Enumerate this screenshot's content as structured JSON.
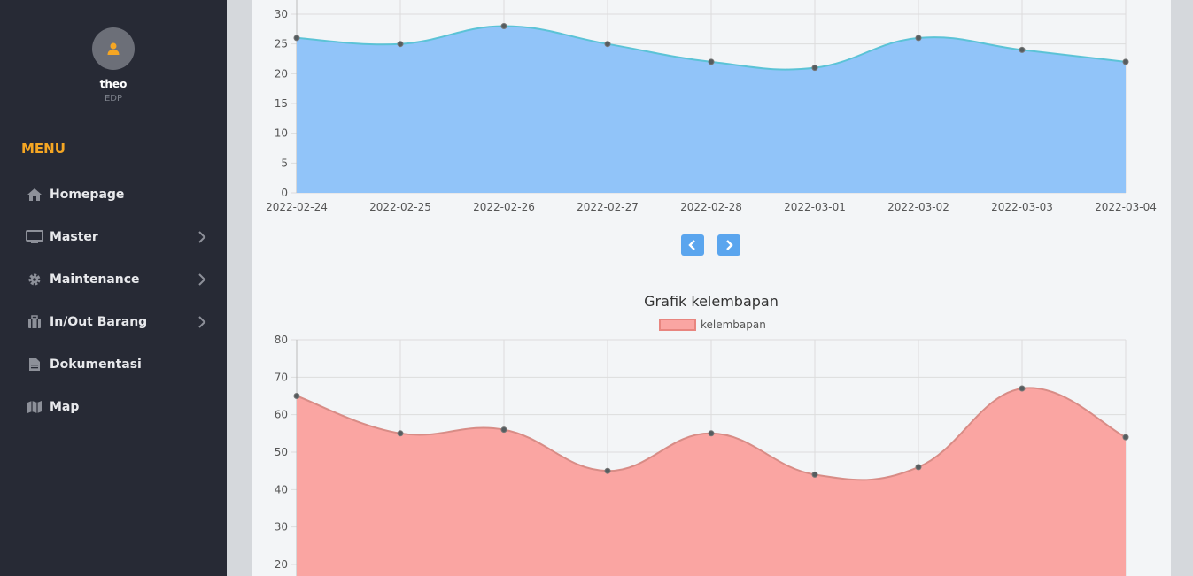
{
  "sidebar": {
    "user": {
      "name": "theo",
      "role": "EDP"
    },
    "menu_title": "MENU",
    "items": [
      {
        "label": "Homepage",
        "icon": "home-icon",
        "has_submenu": false
      },
      {
        "label": "Master",
        "icon": "monitor-icon",
        "has_submenu": true
      },
      {
        "label": "Maintenance",
        "icon": "gear-icon",
        "has_submenu": true
      },
      {
        "label": "In/Out Barang",
        "icon": "suitcase-icon",
        "has_submenu": true
      },
      {
        "label": "Dokumentasi",
        "icon": "document-icon",
        "has_submenu": false
      },
      {
        "label": "Map",
        "icon": "map-icon",
        "has_submenu": false
      }
    ]
  },
  "colors": {
    "sidebar_bg": "#272a35",
    "accent": "#f5a623",
    "temp_fill": "#91c4f9",
    "temp_line": "#5bc3d6",
    "humid_fill": "#faa5a2",
    "humid_line": "#d88c86",
    "nav_button": "#5aa5ee"
  },
  "pager": {
    "prev_icon": "chevron-left-icon",
    "next_icon": "chevron-right-icon"
  },
  "humidity_chart": {
    "title": "Grafik kelembapan",
    "legend_label": "kelembapan"
  },
  "chart_data": [
    {
      "type": "area",
      "title": "",
      "categories": [
        "2022-02-24",
        "2022-02-25",
        "2022-02-26",
        "2022-02-27",
        "2022-02-28",
        "2022-03-01",
        "2022-03-02",
        "2022-03-03",
        "2022-03-04"
      ],
      "series": [
        {
          "values": [
            26,
            25,
            28,
            25,
            22,
            21,
            26,
            24,
            22
          ]
        }
      ],
      "ylim": [
        0,
        30
      ],
      "yticks": [
        0,
        5,
        10,
        15,
        20,
        25,
        30
      ],
      "grid": true
    },
    {
      "type": "area",
      "title": "Grafik kelembapan",
      "categories": [
        "",
        "",
        "",
        "",
        "",
        "",
        "",
        "",
        ""
      ],
      "series": [
        {
          "name": "kelembapan",
          "values": [
            65,
            55,
            56,
            45,
            55,
            44,
            46,
            67,
            54
          ]
        }
      ],
      "ylim": [
        20,
        80
      ],
      "yticks": [
        20,
        30,
        40,
        50,
        60,
        70,
        80
      ],
      "legend": "top-center",
      "grid": true
    }
  ]
}
